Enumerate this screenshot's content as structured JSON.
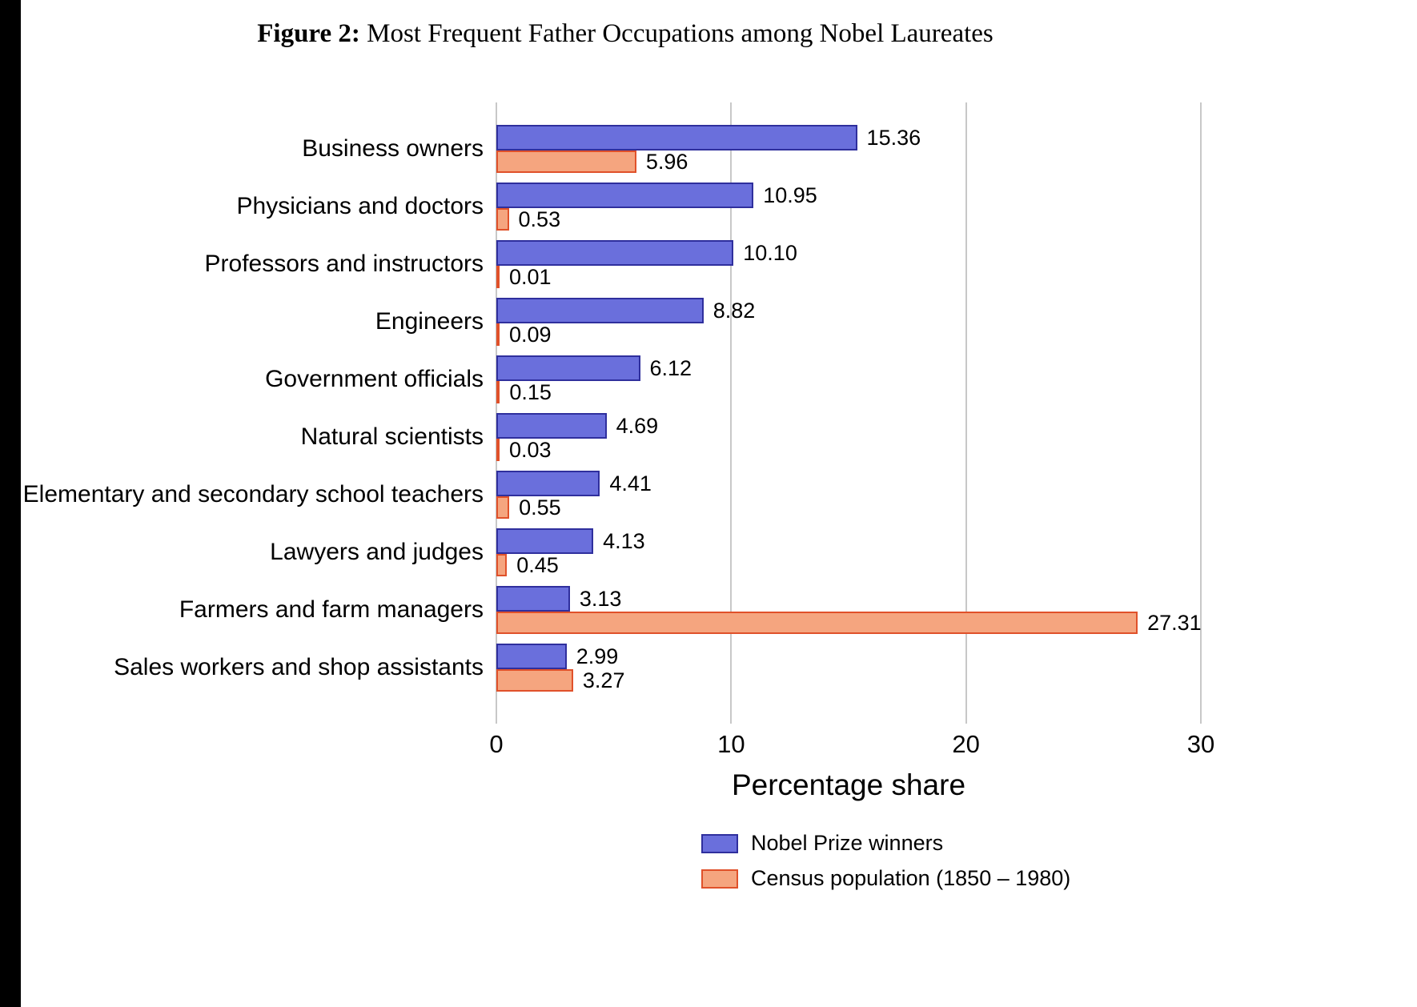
{
  "page": {
    "title_prefix": "Figure 2:",
    "title_text": "Most Frequent Father Occupations among Nobel Laureates"
  },
  "chart_data": {
    "type": "bar",
    "orientation": "horizontal",
    "title": "Figure 2: Most Frequent Father Occupations among Nobel Laureates",
    "xlabel": "Percentage share",
    "ylabel": "",
    "xlim": [
      0,
      30
    ],
    "xticks": [
      0,
      10,
      20,
      30
    ],
    "grid": "vertical",
    "value_labels": true,
    "legend_position": "bottom-center",
    "categories": [
      "Business owners",
      "Physicians and doctors",
      "Professors and instructors",
      "Engineers",
      "Government officials",
      "Natural scientists",
      "Elementary and secondary school teachers",
      "Lawyers and judges",
      "Farmers and farm managers",
      "Sales workers and shop assistants"
    ],
    "series": [
      {
        "name": "Nobel Prize winners",
        "fill": "#6a6fdc",
        "border": "#2f2f9d",
        "values": [
          15.36,
          10.95,
          10.1,
          8.82,
          6.12,
          4.69,
          4.41,
          4.13,
          3.13,
          2.99
        ]
      },
      {
        "name": "Census population (1850 – 1980)",
        "fill": "#f5a57f",
        "border": "#e0512a",
        "values": [
          5.96,
          0.53,
          0.01,
          0.09,
          0.15,
          0.03,
          0.55,
          0.45,
          27.31,
          3.27
        ]
      }
    ]
  }
}
